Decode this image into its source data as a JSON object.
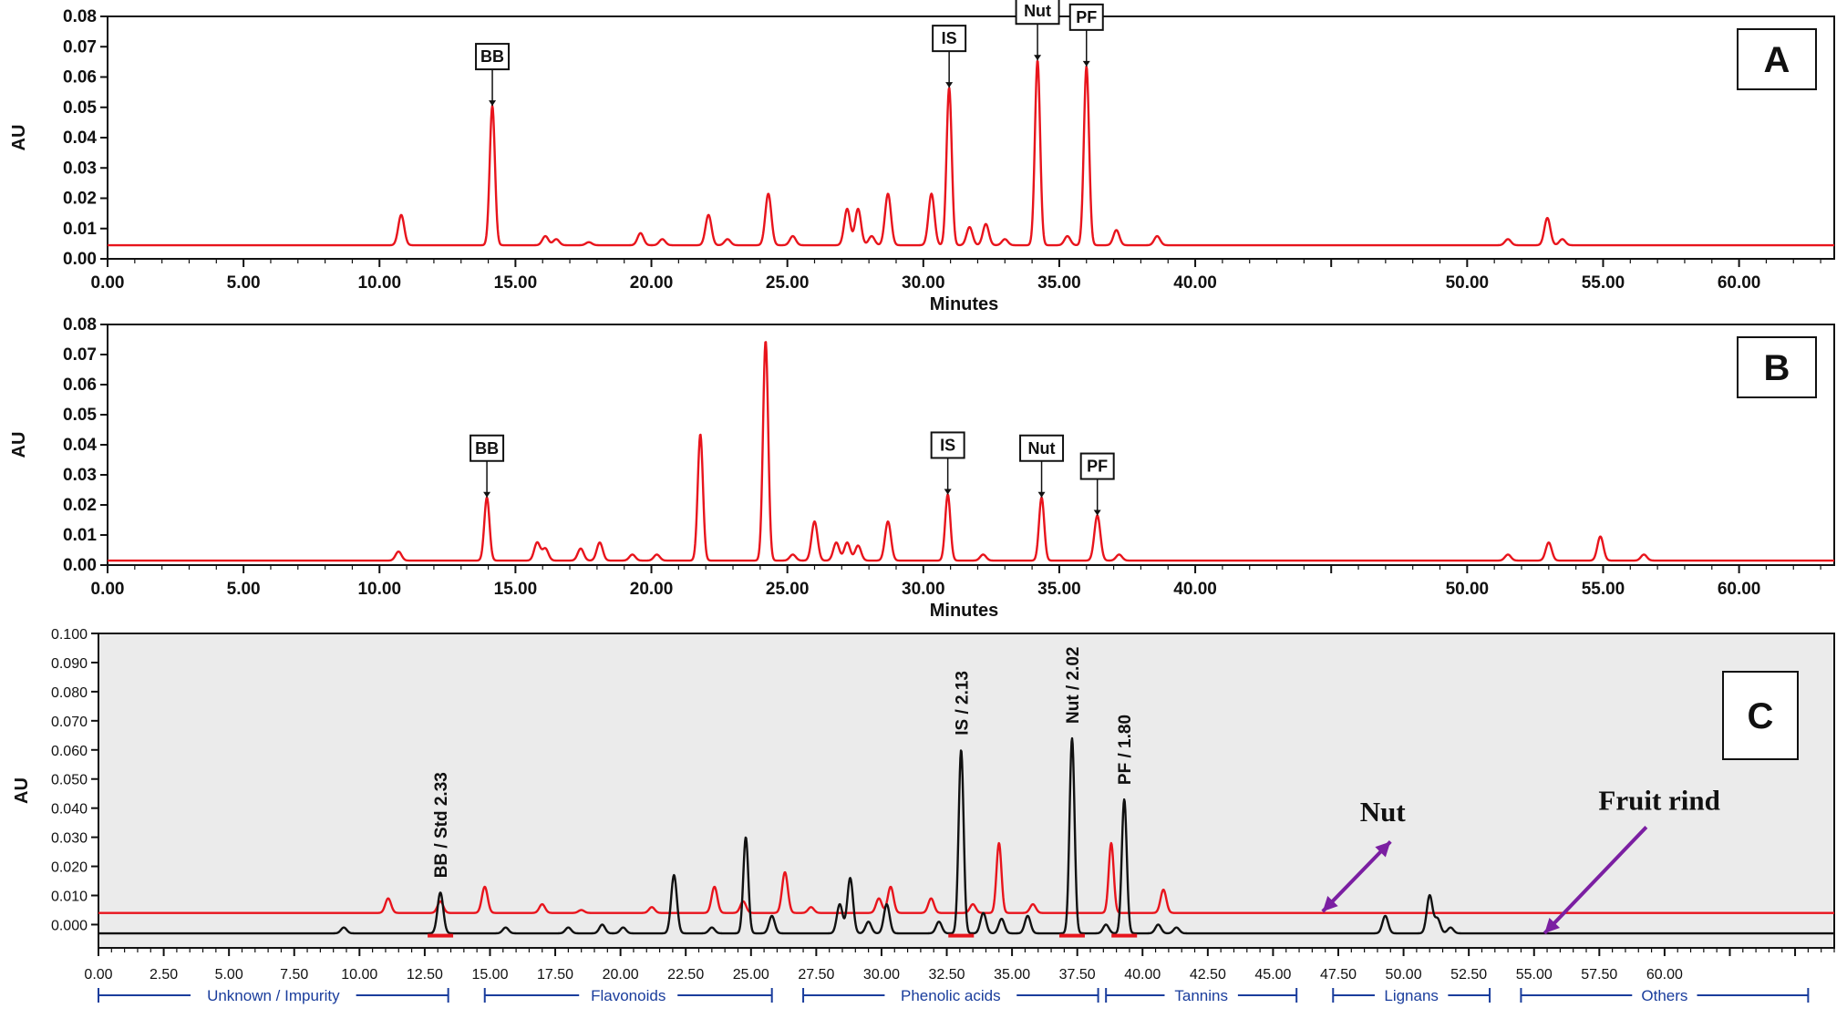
{
  "chart_data": [
    {
      "id": "A",
      "type": "line",
      "panel_label": "A",
      "xlabel": "Minutes",
      "ylabel": "AU",
      "xlim": [
        0,
        63.5
      ],
      "ylim": [
        0,
        0.08
      ],
      "x_ticks": [
        "0.00",
        "5.00",
        "10.00",
        "15.00",
        "20.00",
        "25.00",
        "30.00",
        "35.00",
        "40.00",
        "50.00",
        "55.00",
        "60.00"
      ],
      "y_ticks": [
        "0.00",
        "0.01",
        "0.02",
        "0.03",
        "0.04",
        "0.05",
        "0.06",
        "0.07",
        "0.08"
      ],
      "baseline": 0.0045,
      "series": [
        {
          "color": "#e8141c",
          "peaks": [
            [
              10.8,
              0.01
            ],
            [
              14.15,
              0.046
            ],
            [
              16.1,
              0.003
            ],
            [
              16.5,
              0.002
            ],
            [
              17.7,
              0.001
            ],
            [
              19.6,
              0.004
            ],
            [
              20.4,
              0.002
            ],
            [
              22.1,
              0.01
            ],
            [
              22.8,
              0.002
            ],
            [
              24.3,
              0.017
            ],
            [
              25.2,
              0.003
            ],
            [
              27.2,
              0.012
            ],
            [
              27.6,
              0.012
            ],
            [
              28.1,
              0.003
            ],
            [
              28.7,
              0.017
            ],
            [
              30.3,
              0.017
            ],
            [
              30.95,
              0.052
            ],
            [
              31.7,
              0.006
            ],
            [
              32.3,
              0.007
            ],
            [
              33.0,
              0.002
            ],
            [
              34.2,
              0.061
            ],
            [
              35.3,
              0.003
            ],
            [
              36.0,
              0.059
            ],
            [
              37.1,
              0.005
            ],
            [
              38.6,
              0.003
            ],
            [
              51.5,
              0.002
            ],
            [
              52.95,
              0.009
            ],
            [
              53.5,
              0.002
            ]
          ]
        }
      ],
      "annotations": [
        {
          "text": "BB",
          "x": 14.15
        },
        {
          "text": "IS",
          "x": 30.95
        },
        {
          "text": "Nut",
          "x": 34.2
        },
        {
          "text": "PF",
          "x": 36.0
        }
      ]
    },
    {
      "id": "B",
      "type": "line",
      "panel_label": "B",
      "xlabel": "Minutes",
      "ylabel": "AU",
      "xlim": [
        0,
        63.5
      ],
      "ylim": [
        0,
        0.08
      ],
      "x_ticks": [
        "0.00",
        "5.00",
        "10.00",
        "15.00",
        "20.00",
        "25.00",
        "30.00",
        "35.00",
        "40.00",
        "50.00",
        "55.00",
        "60.00"
      ],
      "y_ticks": [
        "0.00",
        "0.01",
        "0.02",
        "0.03",
        "0.04",
        "0.05",
        "0.06",
        "0.07",
        "0.08"
      ],
      "baseline": 0.0015,
      "series": [
        {
          "color": "#e8141c",
          "peaks": [
            [
              10.7,
              0.003
            ],
            [
              13.95,
              0.021
            ],
            [
              15.8,
              0.006
            ],
            [
              16.1,
              0.004
            ],
            [
              17.4,
              0.004
            ],
            [
              18.1,
              0.006
            ],
            [
              19.3,
              0.002
            ],
            [
              20.2,
              0.002
            ],
            [
              21.8,
              0.042
            ],
            [
              24.2,
              0.073
            ],
            [
              25.2,
              0.002
            ],
            [
              26.0,
              0.013
            ],
            [
              26.8,
              0.006
            ],
            [
              27.2,
              0.006
            ],
            [
              27.6,
              0.005
            ],
            [
              28.7,
              0.013
            ],
            [
              30.9,
              0.022
            ],
            [
              32.2,
              0.002
            ],
            [
              34.35,
              0.021
            ],
            [
              36.4,
              0.015
            ],
            [
              37.2,
              0.002
            ],
            [
              51.5,
              0.002
            ],
            [
              53.0,
              0.006
            ],
            [
              54.9,
              0.008
            ],
            [
              56.5,
              0.002
            ]
          ]
        }
      ],
      "annotations": [
        {
          "text": "BB",
          "x": 13.95
        },
        {
          "text": "IS",
          "x": 30.9
        },
        {
          "text": "Nut",
          "x": 34.35
        },
        {
          "text": "PF",
          "x": 36.4
        }
      ]
    },
    {
      "id": "C",
      "type": "line",
      "panel_label": "C",
      "ylabel": "AU",
      "xlim": [
        0,
        66.5
      ],
      "ylim": [
        -0.008,
        0.1
      ],
      "x_ticks": [
        "0.00",
        "2.50",
        "5.00",
        "7.50",
        "10.00",
        "12.50",
        "15.00",
        "17.50",
        "20.00",
        "22.50",
        "25.00",
        "27.50",
        "30.00",
        "32.50",
        "35.00",
        "37.50",
        "40.00",
        "42.50",
        "45.00",
        "47.50",
        "50.00",
        "52.50",
        "55.00",
        "57.50",
        "60.00"
      ],
      "y_ticks": [
        "0.000",
        "0.010",
        "0.020",
        "0.030",
        "0.040",
        "0.050",
        "0.060",
        "0.070",
        "0.080",
        "0.090",
        "0.100"
      ],
      "series": [
        {
          "name": "Fruit rind",
          "color": "#e8141c",
          "baseline": 0.004,
          "peaks": [
            [
              11.1,
              0.005
            ],
            [
              13.1,
              0.004
            ],
            [
              14.8,
              0.009
            ],
            [
              17.0,
              0.003
            ],
            [
              18.5,
              0.001
            ],
            [
              21.2,
              0.002
            ],
            [
              23.6,
              0.009
            ],
            [
              24.7,
              0.004
            ],
            [
              26.3,
              0.014
            ],
            [
              27.3,
              0.002
            ],
            [
              29.9,
              0.005
            ],
            [
              30.35,
              0.009
            ],
            [
              31.9,
              0.005
            ],
            [
              33.5,
              0.003
            ],
            [
              34.5,
              0.024
            ],
            [
              35.8,
              0.003
            ],
            [
              38.8,
              0.024
            ],
            [
              40.8,
              0.008
            ]
          ]
        },
        {
          "name": "Nut",
          "color": "#111111",
          "baseline": -0.003,
          "peaks": [
            [
              9.4,
              0.002
            ],
            [
              13.1,
              0.014
            ],
            [
              15.6,
              0.002
            ],
            [
              18.0,
              0.002
            ],
            [
              19.3,
              0.003
            ],
            [
              20.1,
              0.002
            ],
            [
              22.05,
              0.02
            ],
            [
              23.5,
              0.002
            ],
            [
              24.8,
              0.033
            ],
            [
              25.8,
              0.006
            ],
            [
              28.4,
              0.01
            ],
            [
              28.8,
              0.019
            ],
            [
              29.5,
              0.004
            ],
            [
              30.2,
              0.01
            ],
            [
              32.2,
              0.004
            ],
            [
              33.05,
              0.063
            ],
            [
              33.9,
              0.007
            ],
            [
              34.6,
              0.005
            ],
            [
              35.6,
              0.006
            ],
            [
              37.3,
              0.067
            ],
            [
              38.6,
              0.003
            ],
            [
              39.3,
              0.046
            ],
            [
              40.6,
              0.003
            ],
            [
              41.3,
              0.002
            ],
            [
              49.3,
              0.006
            ],
            [
              51.0,
              0.013
            ],
            [
              51.3,
              0.005
            ],
            [
              51.8,
              0.002
            ]
          ]
        }
      ],
      "annotations": [
        {
          "text": "BB / Std 2.33",
          "x": 13.1
        },
        {
          "text": "IS / 2.13",
          "x": 33.05
        },
        {
          "text": "Nut / 2.02",
          "x": 37.3
        },
        {
          "text": "PF / 1.80",
          "x": 39.3
        }
      ],
      "callouts": [
        {
          "text": "Nut",
          "target": "Fruit rind"
        },
        {
          "text": "Fruit rind",
          "target": "Nut"
        }
      ],
      "class_ranges": [
        {
          "label": "Unknown / Impurity",
          "start": 0.0,
          "end": 13.4
        },
        {
          "label": "Flavonoids",
          "start": 14.8,
          "end": 25.8
        },
        {
          "label": "Phenolic acids",
          "start": 27.0,
          "end": 38.3
        },
        {
          "label": "Tannins",
          "start": 38.6,
          "end": 45.9
        },
        {
          "label": "Lignans",
          "start": 47.3,
          "end": 53.3
        },
        {
          "label": "Others",
          "start": 54.5,
          "end": 65.5
        }
      ],
      "highlight_color": "#7b1fa2",
      "background_color": "#ebebeb"
    }
  ]
}
